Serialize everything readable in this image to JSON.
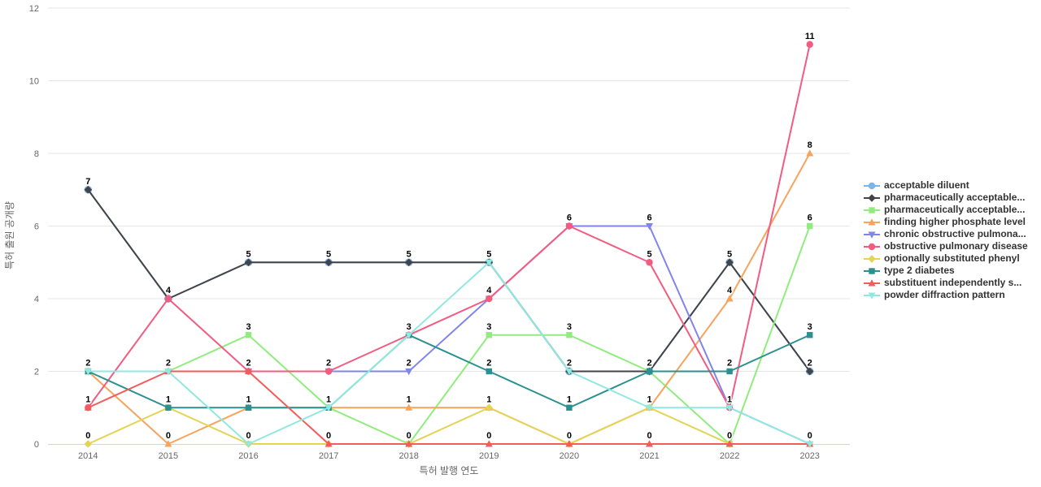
{
  "chart_data": {
    "type": "line",
    "title": "",
    "xlabel": "특허 발행 연도",
    "ylabel": "특허 출원 공개량",
    "categories": [
      "2014",
      "2015",
      "2016",
      "2017",
      "2018",
      "2019",
      "2020",
      "2021",
      "2022",
      "2023"
    ],
    "ylim": [
      0,
      12
    ],
    "yticks": [
      0,
      2,
      4,
      6,
      8,
      10,
      12
    ],
    "grid": true,
    "legend_position": "right",
    "background_color": "#ffffff",
    "grid_color": "#e6e6e6",
    "axis_line_color": "#ccd6eb",
    "series": [
      {
        "name": "acceptable diluent",
        "color": "#7cb5ec",
        "marker": "circle",
        "values": [
          7,
          4,
          5,
          5,
          5,
          5,
          2,
          2,
          5,
          2
        ]
      },
      {
        "name": "pharmaceutically acceptable...",
        "color": "#434348",
        "marker": "diamond",
        "values": [
          7,
          4,
          5,
          5,
          5,
          5,
          2,
          2,
          5,
          2
        ]
      },
      {
        "name": "pharmaceutically acceptable...",
        "color": "#90ed7d",
        "marker": "square",
        "values": [
          2,
          2,
          3,
          1,
          0,
          3,
          3,
          2,
          0,
          6
        ]
      },
      {
        "name": "finding higher phosphate level",
        "color": "#f7a35c",
        "marker": "triangle",
        "values": [
          2,
          0,
          1,
          1,
          1,
          1,
          0,
          1,
          4,
          8
        ]
      },
      {
        "name": "chronic obstructive pulmona...",
        "color": "#8085e9",
        "marker": "triangle-down",
        "values": [
          2,
          2,
          2,
          2,
          2,
          4,
          6,
          6,
          1,
          0
        ]
      },
      {
        "name": "obstructive pulmonary disease",
        "color": "#f15c80",
        "marker": "circle",
        "values": [
          1,
          4,
          2,
          2,
          3,
          4,
          6,
          5,
          1,
          11
        ]
      },
      {
        "name": "optionally substituted phenyl",
        "color": "#e4d354",
        "marker": "diamond",
        "values": [
          0,
          1,
          0,
          0,
          0,
          1,
          0,
          1,
          0,
          0
        ]
      },
      {
        "name": "type 2 diabetes",
        "color": "#2b908f",
        "marker": "square",
        "values": [
          2,
          1,
          1,
          1,
          3,
          2,
          1,
          2,
          2,
          3
        ]
      },
      {
        "name": "substituent independently s...",
        "color": "#f45b5b",
        "marker": "triangle",
        "values": [
          1,
          2,
          2,
          0,
          0,
          0,
          0,
          0,
          0,
          0
        ]
      },
      {
        "name": "powder diffraction pattern",
        "color": "#91e8e1",
        "marker": "triangle-down",
        "values": [
          2,
          2,
          0,
          1,
          3,
          5,
          2,
          1,
          1,
          0
        ]
      }
    ]
  }
}
